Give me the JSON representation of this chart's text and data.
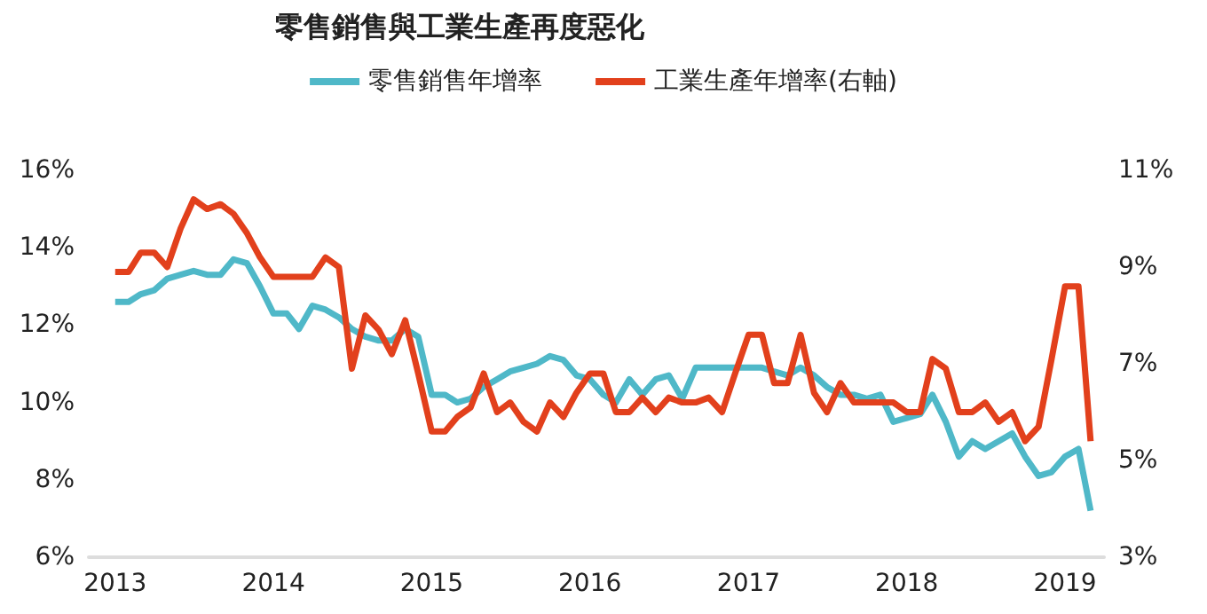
{
  "chart_data": {
    "type": "line",
    "title": "零售銷售與工業生產再度惡化",
    "x": [
      "2013-01",
      "2013-02",
      "2013-03",
      "2013-04",
      "2013-05",
      "2013-06",
      "2013-07",
      "2013-08",
      "2013-09",
      "2013-10",
      "2013-11",
      "2013-12",
      "2014-01",
      "2014-02",
      "2014-03",
      "2014-04",
      "2014-05",
      "2014-06",
      "2014-07",
      "2014-08",
      "2014-09",
      "2014-10",
      "2014-11",
      "2014-12",
      "2015-01",
      "2015-02",
      "2015-03",
      "2015-04",
      "2015-05",
      "2015-06",
      "2015-07",
      "2015-08",
      "2015-09",
      "2015-10",
      "2015-11",
      "2015-12",
      "2016-01",
      "2016-02",
      "2016-03",
      "2016-04",
      "2016-05",
      "2016-06",
      "2016-07",
      "2016-08",
      "2016-09",
      "2016-10",
      "2016-11",
      "2016-12",
      "2017-01",
      "2017-02",
      "2017-03",
      "2017-04",
      "2017-05",
      "2017-06",
      "2017-07",
      "2017-08",
      "2017-09",
      "2017-10",
      "2017-11",
      "2017-12",
      "2018-01",
      "2018-02",
      "2018-03",
      "2018-04",
      "2018-05",
      "2018-06",
      "2018-07",
      "2018-08",
      "2018-09",
      "2018-10",
      "2018-11",
      "2018-12",
      "2019-01",
      "2019-02",
      "2019-03"
    ],
    "series": [
      {
        "name": "零售銷售年增率",
        "color": "#4fb8c8",
        "values": [
          12.6,
          12.6,
          12.8,
          12.9,
          13.2,
          13.3,
          13.4,
          13.3,
          13.3,
          13.7,
          13.6,
          13.0,
          12.3,
          12.3,
          11.9,
          12.5,
          12.4,
          12.2,
          11.9,
          11.7,
          11.6,
          11.6,
          11.9,
          11.7,
          10.2,
          10.2,
          10.0,
          10.1,
          10.4,
          10.6,
          10.8,
          10.9,
          11.0,
          11.2,
          11.1,
          10.7,
          10.6,
          10.2,
          10.0,
          10.6,
          10.2,
          10.6,
          10.7,
          10.1,
          10.9,
          10.9,
          10.9,
          10.9,
          10.9,
          10.9,
          10.8,
          10.7,
          10.9,
          10.7,
          10.4,
          10.2,
          10.2,
          10.1,
          10.2,
          9.5,
          9.6,
          9.7,
          10.2,
          9.5,
          8.6,
          9.0,
          8.8,
          9.0,
          9.2,
          8.6,
          8.1,
          8.2,
          8.6,
          8.8,
          7.2
        ]
      },
      {
        "name": "工業生產年增率(右軸)",
        "color": "#e2401c",
        "axis": "y2",
        "values": [
          8.9,
          8.9,
          9.3,
          9.3,
          9.0,
          9.8,
          10.4,
          10.2,
          10.3,
          10.1,
          9.7,
          9.2,
          8.8,
          8.8,
          8.8,
          8.8,
          9.2,
          9.0,
          6.9,
          8.0,
          7.7,
          7.2,
          7.9,
          6.8,
          5.6,
          5.6,
          5.9,
          6.1,
          6.8,
          6.0,
          6.2,
          5.8,
          5.6,
          6.2,
          5.9,
          6.4,
          6.8,
          6.8,
          6.0,
          6.0,
          6.3,
          6.0,
          6.3,
          6.2,
          6.2,
          6.3,
          6.0,
          6.8,
          7.6,
          7.6,
          6.6,
          6.6,
          7.6,
          6.4,
          6.0,
          6.6,
          6.2,
          6.2,
          6.2,
          6.2,
          6.0,
          6.0,
          7.1,
          6.9,
          6.0,
          6.0,
          6.2,
          5.8,
          6.0,
          5.4,
          5.7,
          7.1,
          8.6,
          8.6,
          5.4
        ]
      }
    ],
    "xlim": [
      "2012-11",
      "2019-04"
    ],
    "xticks": [
      {
        "value": "2013",
        "label": "2013"
      },
      {
        "value": "2014",
        "label": "2014"
      },
      {
        "value": "2015",
        "label": "2015"
      },
      {
        "value": "2016",
        "label": "2016"
      },
      {
        "value": "2017",
        "label": "2017"
      },
      {
        "value": "2018",
        "label": "2018"
      },
      {
        "value": "2019",
        "label": "2019"
      }
    ],
    "ylim": [
      6,
      16
    ],
    "yticks": [
      {
        "value": 6,
        "label": "6%"
      },
      {
        "value": 8,
        "label": "8%"
      },
      {
        "value": 10,
        "label": "10%"
      },
      {
        "value": 12,
        "label": "12%"
      },
      {
        "value": 14,
        "label": "14%"
      },
      {
        "value": 16,
        "label": "16%"
      }
    ],
    "y2lim": [
      3,
      11
    ],
    "y2ticks": [
      {
        "value": 3,
        "label": "3%"
      },
      {
        "value": 5,
        "label": "5%"
      },
      {
        "value": 7,
        "label": "7%"
      },
      {
        "value": 9,
        "label": "9%"
      },
      {
        "value": 11,
        "label": "11%"
      }
    ],
    "legend": "top",
    "grid": false,
    "marker": "none",
    "line_style": "solid"
  }
}
